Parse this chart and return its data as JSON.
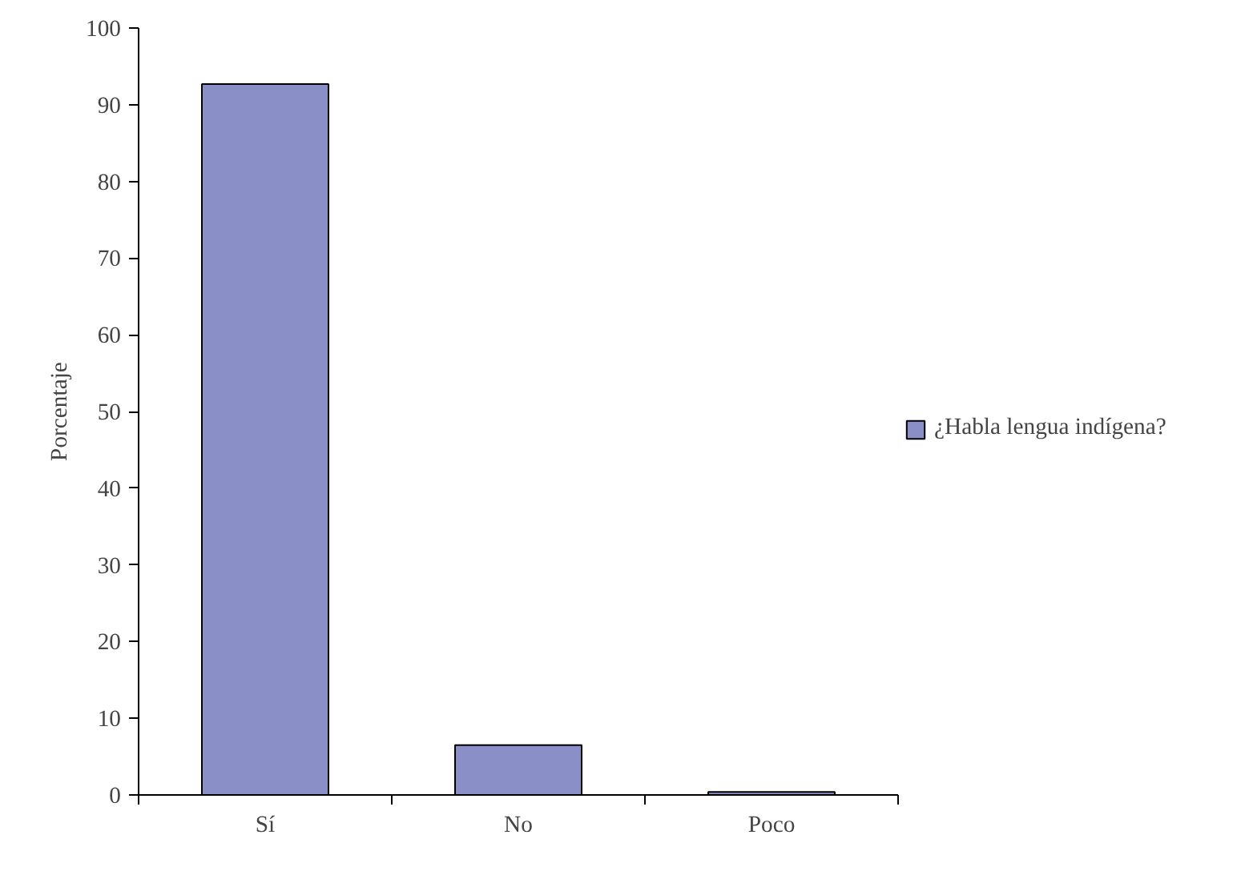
{
  "chart_data": {
    "type": "bar",
    "ylabel": "Porcentaje",
    "categories": [
      "Sí",
      "No",
      "Poco"
    ],
    "series": [
      {
        "name": "¿Habla lengua indígena?",
        "color": "#8b8fc8",
        "values": [
          92.7,
          6.5,
          0.4
        ]
      }
    ],
    "ylim": [
      0,
      100
    ],
    "yticks": [
      0,
      10,
      20,
      30,
      40,
      50,
      60,
      70,
      80,
      90,
      100
    ],
    "grid": false,
    "legend": "right"
  }
}
